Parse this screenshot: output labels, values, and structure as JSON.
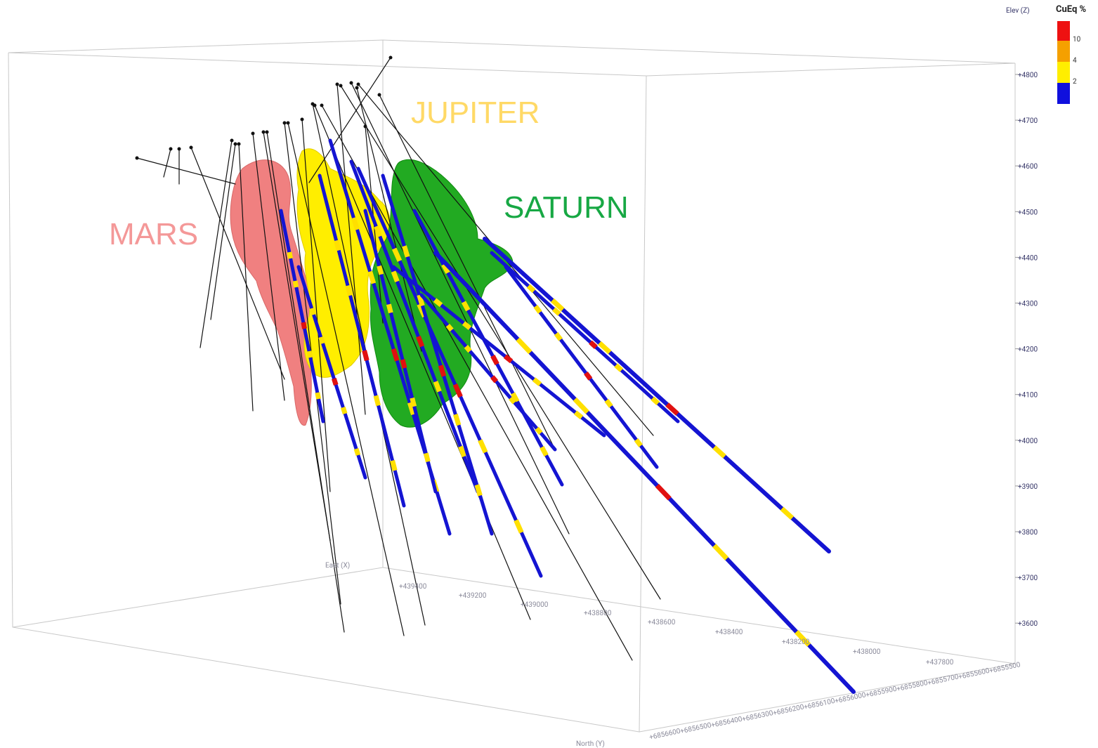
{
  "legend": {
    "title": "CuEq %",
    "labels": [
      "10",
      "4",
      "2"
    ]
  },
  "bodies": [
    {
      "label": "MARS"
    },
    {
      "label": "JUPITER"
    },
    {
      "label": "SATURN"
    }
  ],
  "axes": {
    "z": {
      "title": "Elev (Z)",
      "ticks": [
        "+4800",
        "+4700",
        "+4600",
        "+4500",
        "+4400",
        "+4300",
        "+4200",
        "+4100",
        "+4000",
        "+3900",
        "+3800",
        "+3700",
        "+3600"
      ]
    },
    "x": {
      "title": "East (X)",
      "ticks": [
        "+439400",
        "+439200",
        "+439000",
        "+438800",
        "+438600",
        "+438400",
        "+438200",
        "+438000",
        "+437800"
      ]
    },
    "y": {
      "title": "North (Y)",
      "ticks": [
        "+6856600",
        "+6856500",
        "+6856400",
        "+6856300",
        "+6856200",
        "+6856100",
        "+6856000",
        "+6855900",
        "+6855800",
        "+6855700",
        "+6855600",
        "+6855500"
      ]
    }
  }
}
